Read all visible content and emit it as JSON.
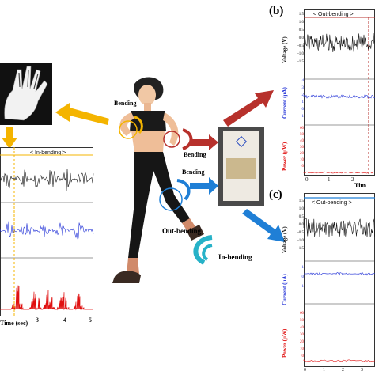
{
  "panels": {
    "b": {
      "letter": "(b)",
      "header": "< Out-bending >",
      "voltage_label": "Voltage (V)",
      "current_label": "Current (μA)",
      "power_label": "Power (μW)",
      "voltage_ticks": [
        "1.5",
        "1.0",
        "0.5",
        "0.0",
        "-0.5",
        "-1.0",
        "-1.5"
      ],
      "current_ticks": [
        "4",
        "3",
        "2",
        "1",
        "0",
        "-1"
      ],
      "power_ticks": [
        "60",
        "50",
        "40",
        "30",
        "20",
        "10",
        "0"
      ],
      "x_ticks": [
        "0",
        "1",
        "2"
      ],
      "xlabel": "Tim"
    },
    "c": {
      "letter": "(c)",
      "header": "< Out-bending >",
      "voltage_label": "Voltage (V)",
      "current_label": "Current (μA)",
      "power_label": "Power (μW)",
      "voltage_ticks": [
        "1.5",
        "1.0",
        "0.5",
        "0.0",
        "-0.5",
        "-1.0",
        "-1.5"
      ],
      "current_ticks": [
        "1",
        "0",
        "-1"
      ],
      "power_ticks": [
        "60",
        "50",
        "40",
        "30",
        "20",
        "10",
        "0"
      ],
      "x_ticks": [
        "0",
        "1",
        "2",
        "3"
      ]
    },
    "a": {
      "header": "< In-bending >",
      "x_ticks": [
        "3",
        "4",
        "5"
      ],
      "xlabel": "Time (sec)"
    }
  },
  "annotations": {
    "bending_1": "Bending",
    "bending_2": "Bending",
    "bending_3": "Bending",
    "out_bending": "Out-bending",
    "in_bending": "In-bending"
  },
  "colors": {
    "voltage": "#111111",
    "current": "#1f2fd6",
    "power": "#e01010",
    "arrow_yellow": "#f4b400",
    "arrow_red": "#b7312c",
    "arrow_blue": "#1f7fd6",
    "bend_cyan": "#27b2c8"
  }
}
